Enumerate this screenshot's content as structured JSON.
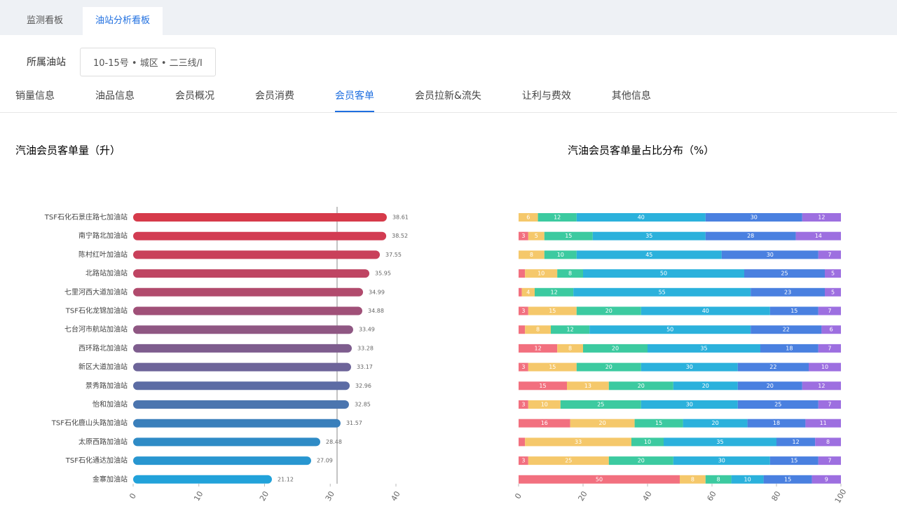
{
  "header": {
    "tabs": [
      "监测看板",
      "油站分析看板"
    ],
    "filter_label": "所属油站",
    "filter_value": "10-15号 • 城区 • 二三线/I",
    "nav": [
      "销量信息",
      "油品信息",
      "会员概况",
      "会员消费",
      "会员客单",
      "会员拉新&流失",
      "让利与费效",
      "其他信息"
    ],
    "active_nav": 4
  },
  "chart_data": [
    {
      "type": "hbar",
      "title": "汽油会员客单量（升）",
      "categories": [
        "TSF石化石景庄路七加油站",
        "南宁路北加油站",
        "陈村红叶加油站",
        "北路站加油站",
        "七里河西大道加油站",
        "TSF石化龙锦加油站",
        "七台河市航站加油站",
        "西环路北加油站",
        "新区大道加油站",
        "景秀路加油站",
        "怡和加油站",
        "TSF石化鹿山头路加油站",
        "太原西路加油站",
        "TSF石化通达加油站",
        "金寨加油站"
      ],
      "values": [
        38.61,
        38.52,
        37.55,
        35.95,
        34.99,
        34.88,
        33.49,
        33.28,
        33.17,
        32.96,
        32.85,
        31.57,
        28.48,
        27.09,
        21.12
      ],
      "colors": [
        "#d63a4a",
        "#d23c52",
        "#c9405a",
        "#bf4563",
        "#b14b6d",
        "#a05078",
        "#8f5783",
        "#7e5d8e",
        "#6d6499",
        "#5c6ca4",
        "#4b75af",
        "#3a7fbb",
        "#2f8bc6",
        "#2896d0",
        "#22a2da"
      ],
      "xlim": [
        0,
        40
      ],
      "xticks": [
        0,
        10,
        20,
        30,
        40
      ],
      "reference_line": 31.04
    },
    {
      "type": "stacked_hbar",
      "title": "汽油会员客单量占比分布（%）",
      "xlim": [
        0,
        100
      ],
      "xticks": [
        0,
        20,
        40,
        60,
        80,
        100
      ],
      "series": [
        {
          "color": "#f2707f",
          "values": [
            0,
            3,
            0,
            2,
            1,
            3,
            2,
            12,
            3,
            15,
            3,
            16,
            2,
            3,
            50
          ]
        },
        {
          "color": "#f5c86b",
          "values": [
            6,
            5,
            8,
            10,
            4,
            15,
            8,
            8,
            15,
            13,
            10,
            20,
            33,
            25,
            8
          ]
        },
        {
          "color": "#3ccaa0",
          "values": [
            12,
            15,
            10,
            8,
            12,
            20,
            12,
            20,
            20,
            20,
            25,
            15,
            10,
            20,
            8
          ]
        },
        {
          "color": "#2bb1dc",
          "values": [
            40,
            35,
            45,
            50,
            55,
            40,
            50,
            35,
            30,
            20,
            30,
            20,
            35,
            30,
            10
          ]
        },
        {
          "color": "#4a80e0",
          "values": [
            30,
            28,
            30,
            25,
            23,
            15,
            22,
            18,
            22,
            20,
            25,
            18,
            12,
            15,
            15
          ]
        },
        {
          "color": "#9d6fe0",
          "values": [
            12,
            14,
            7,
            5,
            5,
            7,
            6,
            7,
            10,
            12,
            7,
            11,
            8,
            7,
            9
          ]
        }
      ]
    }
  ]
}
